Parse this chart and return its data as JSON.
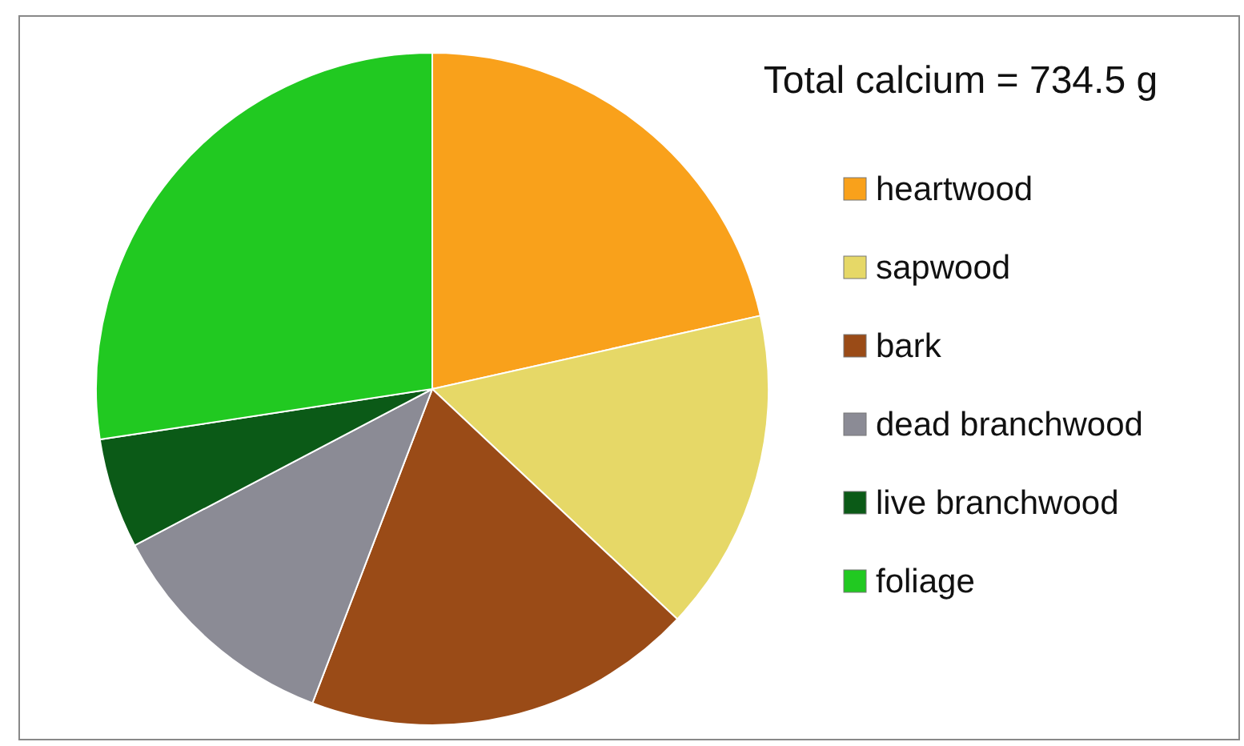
{
  "chart_data": {
    "type": "pie",
    "title": "Total calcium = 734.5 g",
    "categories": [
      "heartwood",
      "sapwood",
      "bark",
      "dead branchwood",
      "live branchwood",
      "foliage"
    ],
    "values": [
      21.5,
      15.5,
      18.8,
      11.5,
      5.3,
      27.4
    ],
    "colors": [
      "#f9a11b",
      "#e6d867",
      "#9a4b17",
      "#8b8b95",
      "#0b5a17",
      "#21c921"
    ],
    "legend": "right"
  }
}
